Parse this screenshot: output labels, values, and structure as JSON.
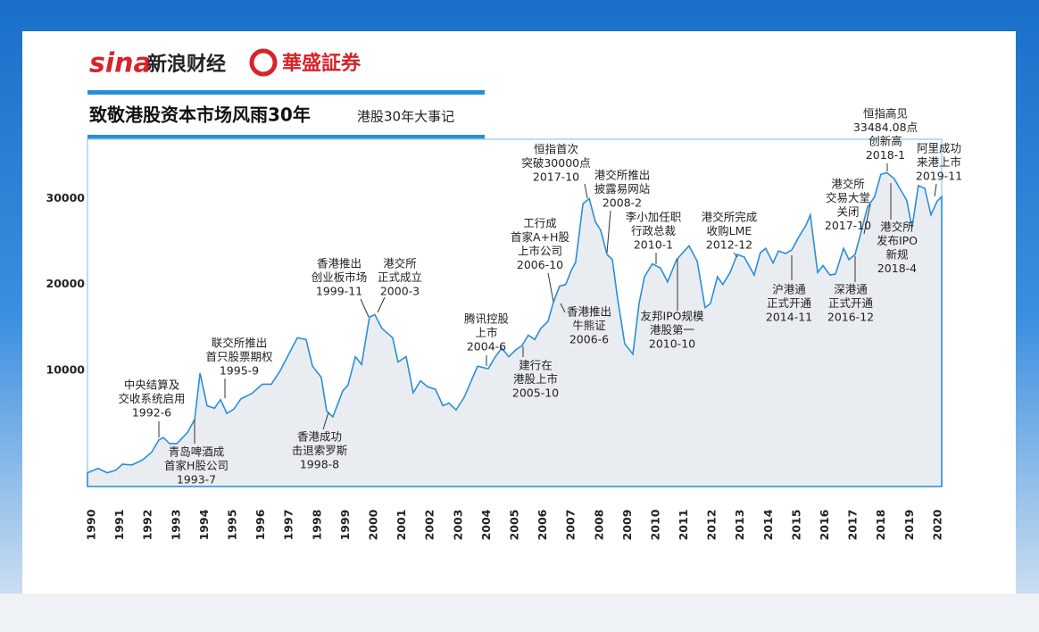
{
  "branding": {
    "sina": "sina",
    "sina_name": "新浪财经",
    "partner": "華盛証券"
  },
  "chart_data": {
    "type": "area",
    "title": "致敬港股资本市场风雨30年",
    "subtitle": "港股30年大事记",
    "color": "#2a8fd8",
    "fill": "#e9edf2",
    "xlim": [
      1989.84,
      2020.13
    ],
    "ylim": [
      -3500,
      37000
    ],
    "xticks": [
      1990,
      1991,
      1992,
      1993,
      1994,
      1995,
      1996,
      1997,
      1998,
      1999,
      2000,
      2001,
      2002,
      2003,
      2004,
      2005,
      2006,
      2007,
      2008,
      2009,
      2010,
      2011,
      2012,
      2013,
      2014,
      2015,
      2016,
      2017,
      2018,
      2019,
      2020
    ],
    "yticks": [
      10000,
      20000,
      30000
    ],
    "x": [
      1989.84,
      1990.22,
      1990.54,
      1990.85,
      1991.08,
      1991.42,
      1991.8,
      1992.12,
      1992.37,
      1992.53,
      1992.75,
      1993.01,
      1993.39,
      1993.64,
      1993.83,
      1994.08,
      1994.34,
      1994.56,
      1994.78,
      1995.03,
      1995.28,
      1995.66,
      1996.04,
      1996.36,
      1996.68,
      1996.93,
      1997.28,
      1997.59,
      1997.82,
      1998.13,
      1998.32,
      1998.54,
      1998.89,
      1999.08,
      1999.34,
      1999.56,
      1999.84,
      2000.03,
      2000.28,
      2000.66,
      2000.85,
      2001.14,
      2001.39,
      2001.65,
      2001.9,
      2002.18,
      2002.44,
      2002.66,
      2002.91,
      2003.2,
      2003.45,
      2003.67,
      2004.05,
      2004.3,
      2004.53,
      2004.78,
      2005.03,
      2005.25,
      2005.47,
      2005.7,
      2005.92,
      2006.17,
      2006.36,
      2006.58,
      2006.8,
      2006.99,
      2007.15,
      2007.41,
      2007.63,
      2007.85,
      2008.04,
      2008.26,
      2008.45,
      2008.64,
      2008.89,
      2009.18,
      2009.4,
      2009.59,
      2009.87,
      2010.16,
      2010.41,
      2010.73,
      2010.98,
      2011.17,
      2011.46,
      2011.74,
      2011.93,
      2012.18,
      2012.37,
      2012.63,
      2012.88,
      2013.13,
      2013.48,
      2013.7,
      2013.89,
      2014.15,
      2014.34,
      2014.59,
      2014.81,
      2015.06,
      2015.32,
      2015.47,
      2015.73,
      2015.92,
      2016.17,
      2016.36,
      2016.65,
      2016.84,
      2017.06,
      2017.31,
      2017.5,
      2017.75,
      2017.97,
      2018.19,
      2018.45,
      2018.64,
      2018.89,
      2019.08,
      2019.3,
      2019.53,
      2019.75,
      2019.97,
      2020.13
    ],
    "values": [
      -1900,
      -1400,
      -1900,
      -1600,
      -900,
      -1000,
      -400,
      500,
      1900,
      2200,
      1500,
      1500,
      2800,
      4300,
      9700,
      5900,
      5600,
      6600,
      5000,
      5500,
      6700,
      7300,
      8400,
      8400,
      10000,
      11600,
      13800,
      13600,
      10500,
      9200,
      5300,
      4600,
      7600,
      8300,
      11600,
      10700,
      16200,
      16500,
      14900,
      13800,
      11000,
      11600,
      7400,
      8800,
      8100,
      7800,
      5900,
      6200,
      5400,
      6900,
      8800,
      10500,
      10200,
      11600,
      12600,
      11600,
      12400,
      12900,
      14100,
      13600,
      14900,
      15700,
      17900,
      19800,
      20000,
      21600,
      22600,
      29400,
      30000,
      27300,
      26300,
      23500,
      22900,
      18300,
      13100,
      11900,
      17800,
      20900,
      22400,
      21900,
      20300,
      22900,
      23800,
      24500,
      22700,
      17300,
      17800,
      20900,
      20000,
      21400,
      23500,
      23200,
      21100,
      23700,
      24200,
      22500,
      23900,
      23600,
      24000,
      25500,
      26900,
      28100,
      21400,
      22200,
      21100,
      21200,
      24200,
      22900,
      23500,
      26600,
      29000,
      30200,
      32800,
      33000,
      32300,
      31200,
      29800,
      26600,
      31500,
      31200,
      28100,
      29700,
      30200
    ],
    "annotations": [
      [
        "中央结算及",
        "交收系统启用",
        "1992-6"
      ],
      [
        "青岛啤酒成",
        "首家H股公司",
        "1993-7"
      ],
      [
        "联交所推出",
        "首只股票期权",
        "1995-9"
      ],
      [
        "香港成功",
        "击退索罗斯",
        "1998-8"
      ],
      [
        "香港推出",
        "创业板市场",
        "1999-11"
      ],
      [
        "港交所",
        "正式成立",
        "2000-3"
      ],
      [
        "腾讯控股",
        "上市",
        "2004-6"
      ],
      [
        "建行在",
        "港股上市",
        "2005-10"
      ],
      [
        "工行成",
        "首家A+H股",
        "上市公司",
        "2006-10"
      ],
      [
        "香港推出",
        "牛熊证",
        "2006-6"
      ],
      [
        "恒指首次",
        "突破30000点",
        "2017-10"
      ],
      [
        "港交所推出",
        "披露易网站",
        "2008-2"
      ],
      [
        "李小加任职",
        "行政总裁",
        "2010-1"
      ],
      [
        "友邦IPO规模",
        "港股第一",
        "2010-10"
      ],
      [
        "港交所完成",
        "收购LME",
        "2012-12"
      ],
      [
        "沪港通",
        "正式开通",
        "2014-11"
      ],
      [
        "深港通",
        "正式开通",
        "2016-12"
      ],
      [
        "港交所",
        "交易大堂",
        "关闭",
        "2017-10"
      ],
      [
        "恒指高见",
        "33484.08点",
        "创新高",
        "2018-1"
      ],
      [
        "港交所",
        "发布IPO",
        "新规",
        "2018-4"
      ],
      [
        "阿里成功",
        "来港上市",
        "2019-11"
      ]
    ]
  }
}
